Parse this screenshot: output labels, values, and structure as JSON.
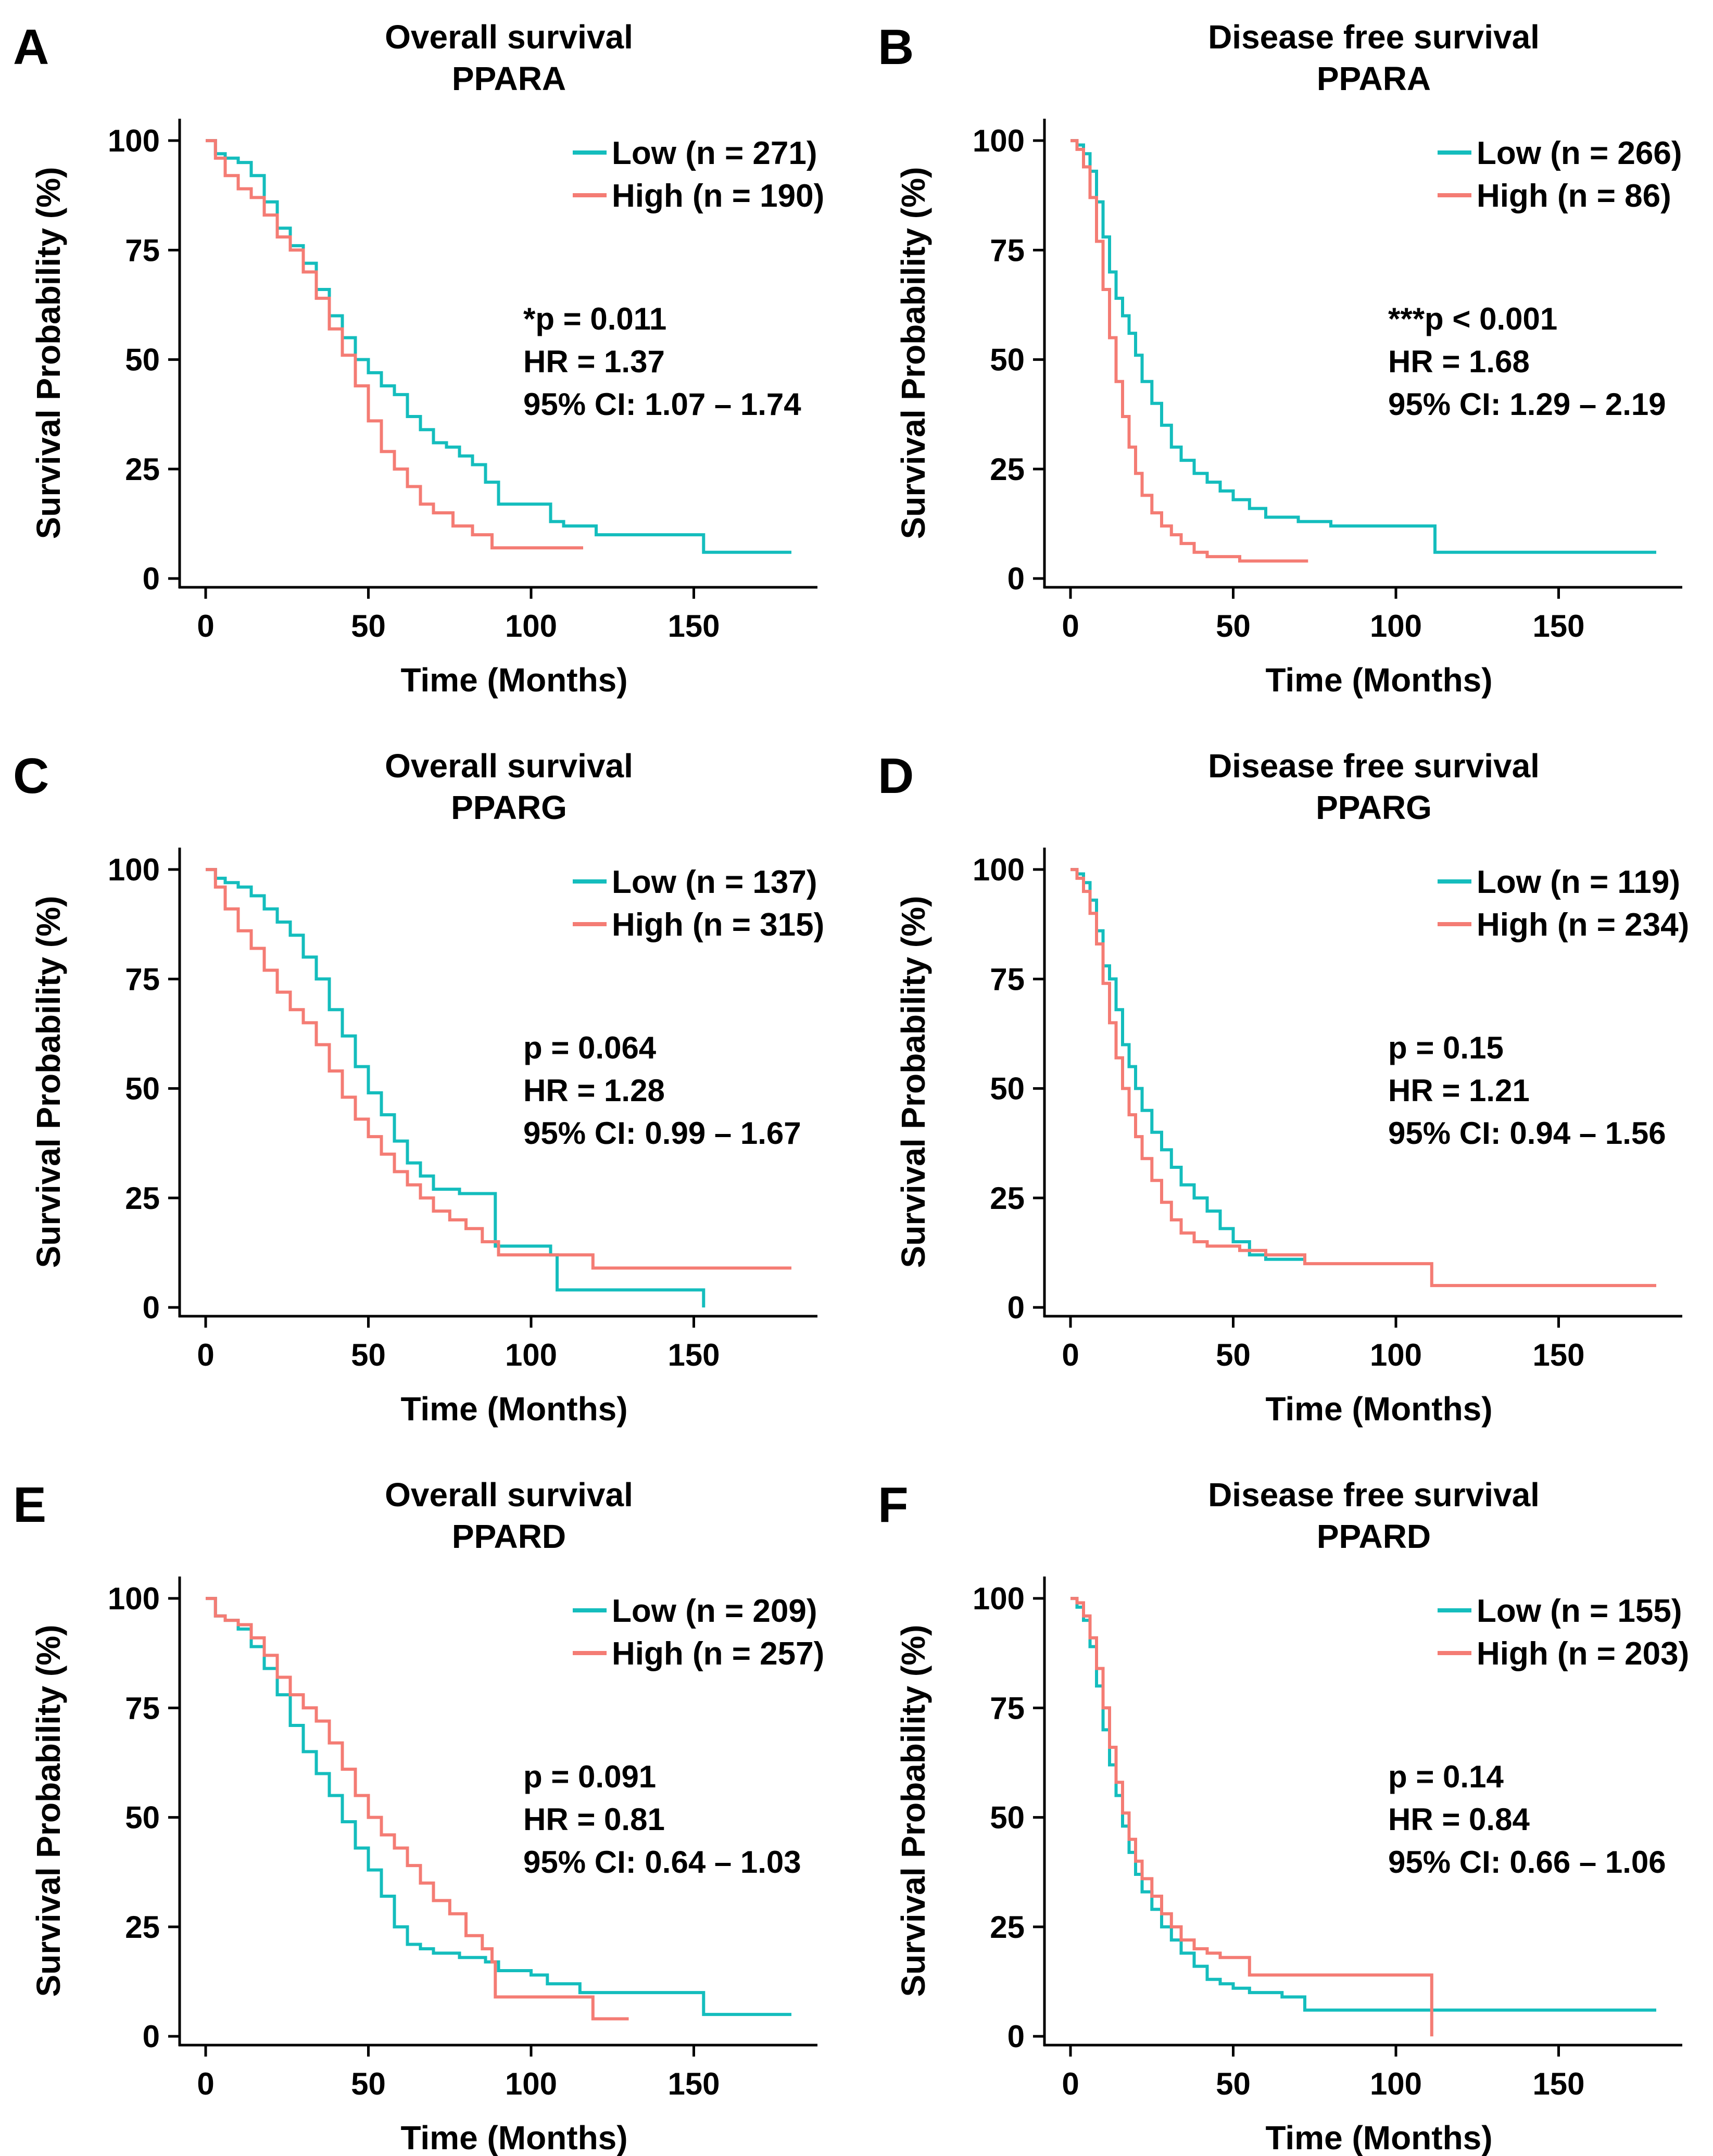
{
  "colors": {
    "low": "#14bdbd",
    "high": "#f47c74",
    "axis": "#000000"
  },
  "shared": {
    "xlabel": "Time (Months)",
    "ylabel": "Survival Probability (%)",
    "xticks": [
      0,
      50,
      100,
      150
    ],
    "yticks": [
      0,
      25,
      50,
      75,
      100
    ],
    "xlim": [
      -8,
      188
    ],
    "ylim": [
      -2,
      105
    ]
  },
  "chart_data": [
    {
      "type": "line",
      "panel": "A",
      "title": "Overall survival",
      "gene": "PPARA",
      "stats": [
        "*p = 0.011",
        "HR = 1.37",
        "95% CI: 1.07 – 1.74"
      ],
      "series": [
        {
          "name": "Low",
          "legend": "Low (n = 271)",
          "color_key": "low",
          "x": [
            0,
            3,
            6,
            10,
            14,
            18,
            22,
            26,
            30,
            34,
            38,
            42,
            46,
            50,
            54,
            58,
            62,
            66,
            70,
            74,
            78,
            82,
            86,
            90,
            96,
            100,
            106,
            110,
            120,
            130,
            140,
            152,
            153,
            165,
            175,
            180
          ],
          "y": [
            100,
            97,
            96,
            95,
            92,
            86,
            80,
            76,
            72,
            66,
            60,
            55,
            50,
            47,
            44,
            42,
            37,
            34,
            31,
            30,
            28,
            26,
            22,
            17,
            17,
            17,
            13,
            12,
            10,
            10,
            10,
            10,
            6,
            6,
            6,
            6
          ]
        },
        {
          "name": "High",
          "legend": "High (n = 190)",
          "color_key": "high",
          "x": [
            0,
            3,
            6,
            10,
            14,
            18,
            22,
            26,
            30,
            34,
            38,
            42,
            46,
            50,
            54,
            58,
            62,
            66,
            70,
            76,
            82,
            88,
            95,
            105,
            116
          ],
          "y": [
            100,
            96,
            92,
            89,
            87,
            83,
            78,
            75,
            70,
            64,
            57,
            51,
            44,
            36,
            29,
            25,
            21,
            17,
            15,
            12,
            10,
            7,
            7,
            7,
            7
          ]
        }
      ]
    },
    {
      "type": "line",
      "panel": "B",
      "title": "Disease free survival",
      "gene": "PPARA",
      "stats": [
        "***p < 0.001",
        "HR = 1.68",
        "95% CI: 1.29 – 2.19"
      ],
      "series": [
        {
          "name": "Low",
          "legend": "Low (n = 266)",
          "color_key": "low",
          "x": [
            0,
            2,
            4,
            6,
            8,
            10,
            12,
            14,
            16,
            18,
            20,
            22,
            25,
            28,
            31,
            34,
            38,
            42,
            46,
            50,
            55,
            60,
            70,
            80,
            90,
            100,
            111,
            112,
            130,
            150,
            170,
            180
          ],
          "y": [
            100,
            99,
            97,
            93,
            86,
            78,
            70,
            64,
            60,
            56,
            51,
            45,
            40,
            35,
            30,
            27,
            24,
            22,
            20,
            18,
            16,
            14,
            13,
            12,
            12,
            12,
            12,
            6,
            6,
            6,
            6,
            6
          ]
        },
        {
          "name": "High",
          "legend": "High (n = 86)",
          "color_key": "high",
          "x": [
            0,
            2,
            4,
            6,
            8,
            10,
            12,
            14,
            16,
            18,
            20,
            22,
            25,
            28,
            31,
            34,
            38,
            42,
            46,
            52,
            60,
            70,
            73
          ],
          "y": [
            100,
            98,
            94,
            87,
            77,
            66,
            55,
            45,
            37,
            30,
            24,
            19,
            15,
            12,
            10,
            8,
            6,
            5,
            5,
            4,
            4,
            4,
            4
          ]
        }
      ]
    },
    {
      "type": "line",
      "panel": "C",
      "title": "Overall survival",
      "gene": "PPARG",
      "stats": [
        "p = 0.064",
        "HR = 1.28",
        "95% CI: 0.99 – 1.67"
      ],
      "series": [
        {
          "name": "Low",
          "legend": "Low (n = 137)",
          "color_key": "low",
          "x": [
            0,
            3,
            6,
            10,
            14,
            18,
            22,
            26,
            30,
            34,
            38,
            42,
            46,
            50,
            54,
            58,
            62,
            66,
            70,
            78,
            86,
            89,
            96,
            106,
            108,
            115,
            130,
            145,
            152,
            153
          ],
          "y": [
            100,
            98,
            97,
            96,
            94,
            91,
            88,
            85,
            80,
            75,
            68,
            62,
            55,
            49,
            44,
            38,
            33,
            30,
            27,
            26,
            26,
            14,
            14,
            12,
            4,
            4,
            4,
            4,
            4,
            0
          ]
        },
        {
          "name": "High",
          "legend": "High (n = 315)",
          "color_key": "high",
          "x": [
            0,
            3,
            6,
            10,
            14,
            18,
            22,
            26,
            30,
            34,
            38,
            42,
            46,
            50,
            54,
            58,
            62,
            66,
            70,
            75,
            80,
            85,
            90,
            100,
            110,
            118,
            119,
            140,
            160,
            180
          ],
          "y": [
            100,
            96,
            91,
            86,
            82,
            77,
            72,
            68,
            65,
            60,
            54,
            48,
            43,
            39,
            35,
            31,
            28,
            25,
            22,
            20,
            18,
            15,
            12,
            12,
            12,
            12,
            9,
            9,
            9,
            9
          ]
        }
      ]
    },
    {
      "type": "line",
      "panel": "D",
      "title": "Disease free survival",
      "gene": "PPARG",
      "stats": [
        "p = 0.15",
        "HR = 1.21",
        "95% CI: 0.94 – 1.56"
      ],
      "series": [
        {
          "name": "Low",
          "legend": "Low (n = 119)",
          "color_key": "low",
          "x": [
            0,
            2,
            4,
            6,
            8,
            10,
            12,
            14,
            16,
            18,
            20,
            22,
            25,
            28,
            31,
            34,
            38,
            42,
            46,
            50,
            55,
            60,
            65,
            70,
            72
          ],
          "y": [
            100,
            99,
            97,
            93,
            86,
            78,
            75,
            68,
            60,
            55,
            50,
            45,
            40,
            36,
            32,
            28,
            25,
            22,
            18,
            15,
            12,
            11,
            11,
            11,
            11
          ]
        },
        {
          "name": "High",
          "legend": "High (n = 234)",
          "color_key": "high",
          "x": [
            0,
            2,
            4,
            6,
            8,
            10,
            12,
            14,
            16,
            18,
            20,
            22,
            25,
            28,
            31,
            34,
            38,
            42,
            46,
            52,
            60,
            70,
            72,
            90,
            110,
            111,
            130,
            150,
            170,
            180
          ],
          "y": [
            100,
            98,
            95,
            90,
            83,
            74,
            65,
            57,
            50,
            44,
            39,
            34,
            29,
            24,
            20,
            17,
            15,
            14,
            14,
            13,
            12,
            12,
            10,
            10,
            10,
            5,
            5,
            5,
            5,
            5
          ]
        }
      ]
    },
    {
      "type": "line",
      "panel": "E",
      "title": "Overall survival",
      "gene": "PPARD",
      "stats": [
        "p = 0.091",
        "HR = 0.81",
        "95% CI: 0.64 – 1.03"
      ],
      "series": [
        {
          "name": "Low",
          "legend": "Low (n = 209)",
          "color_key": "low",
          "x": [
            0,
            3,
            6,
            10,
            14,
            18,
            22,
            26,
            30,
            34,
            38,
            42,
            46,
            50,
            54,
            58,
            62,
            66,
            70,
            78,
            86,
            90,
            100,
            105,
            115,
            130,
            145,
            152,
            153,
            165,
            180
          ],
          "y": [
            100,
            96,
            95,
            93,
            89,
            84,
            78,
            71,
            65,
            60,
            55,
            49,
            43,
            38,
            32,
            25,
            21,
            20,
            19,
            18,
            17,
            15,
            14,
            12,
            10,
            10,
            10,
            10,
            5,
            5,
            5
          ]
        },
        {
          "name": "High",
          "legend": "High (n = 257)",
          "color_key": "high",
          "x": [
            0,
            3,
            6,
            10,
            14,
            18,
            22,
            26,
            30,
            34,
            38,
            42,
            46,
            50,
            54,
            58,
            62,
            66,
            70,
            75,
            80,
            85,
            88,
            89,
            100,
            110,
            118,
            119,
            130
          ],
          "y": [
            100,
            96,
            95,
            94,
            91,
            87,
            82,
            78,
            75,
            72,
            67,
            61,
            55,
            50,
            46,
            43,
            39,
            35,
            31,
            28,
            23,
            20,
            17,
            9,
            9,
            9,
            9,
            4,
            4
          ]
        }
      ]
    },
    {
      "type": "line",
      "panel": "F",
      "title": "Disease free survival",
      "gene": "PPARD",
      "stats": [
        "p = 0.14",
        "HR = 0.84",
        "95% CI: 0.66 – 1.06"
      ],
      "series": [
        {
          "name": "Low",
          "legend": "Low (n = 155)",
          "color_key": "low",
          "x": [
            0,
            2,
            4,
            6,
            8,
            10,
            12,
            14,
            16,
            18,
            20,
            22,
            25,
            28,
            31,
            34,
            38,
            42,
            46,
            50,
            55,
            60,
            65,
            70,
            72,
            90,
            110,
            130,
            150,
            170,
            180
          ],
          "y": [
            100,
            98,
            95,
            89,
            80,
            70,
            62,
            55,
            48,
            42,
            37,
            33,
            29,
            25,
            22,
            19,
            16,
            13,
            12,
            11,
            10,
            10,
            9,
            9,
            6,
            6,
            6,
            6,
            6,
            6,
            6
          ]
        },
        {
          "name": "High",
          "legend": "High (n = 203)",
          "color_key": "high",
          "x": [
            0,
            2,
            4,
            6,
            8,
            10,
            12,
            14,
            16,
            18,
            20,
            22,
            25,
            28,
            31,
            34,
            38,
            42,
            46,
            52,
            55,
            70,
            90,
            110,
            111
          ],
          "y": [
            100,
            99,
            96,
            91,
            84,
            75,
            66,
            58,
            51,
            45,
            40,
            36,
            32,
            28,
            25,
            22,
            20,
            19,
            18,
            18,
            14,
            14,
            14,
            14,
            0
          ]
        }
      ]
    }
  ]
}
